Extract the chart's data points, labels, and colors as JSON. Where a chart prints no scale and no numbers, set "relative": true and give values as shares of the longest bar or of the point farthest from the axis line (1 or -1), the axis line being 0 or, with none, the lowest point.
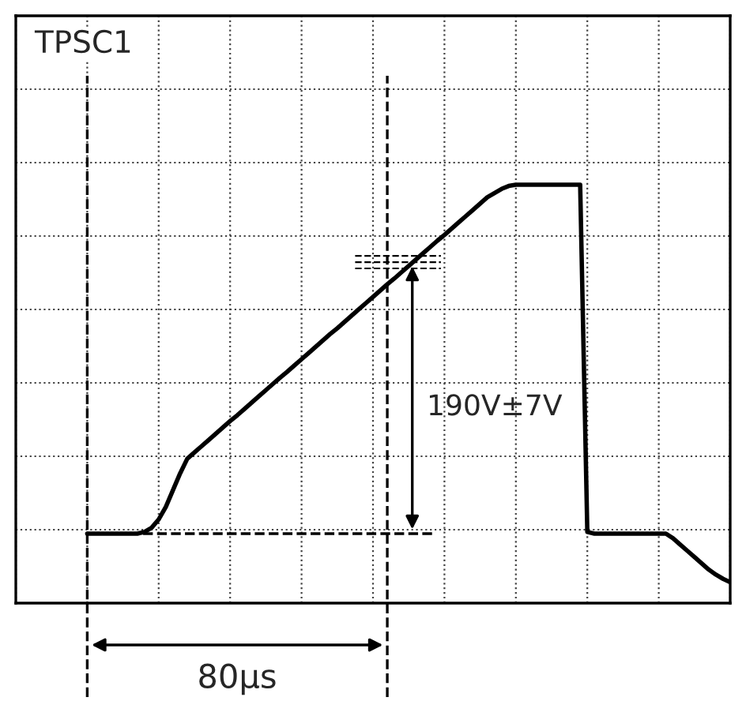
{
  "chart_data": {
    "type": "line",
    "relative": true,
    "categories": [
      null,
      null,
      null,
      null,
      null,
      null,
      null,
      null,
      null,
      null,
      null,
      null,
      null,
      null,
      null,
      null,
      null,
      null,
      null,
      null,
      null,
      null,
      null,
      null,
      null,
      null,
      null,
      null,
      null,
      null,
      null,
      null,
      null,
      null,
      null,
      null,
      null,
      null,
      null,
      null,
      null,
      null,
      null,
      null,
      null,
      null,
      null,
      null,
      null,
      null,
      null,
      null,
      null,
      null,
      null,
      null,
      null,
      null,
      null,
      null,
      null,
      null,
      null,
      null,
      null,
      null,
      null,
      null,
      null,
      null,
      null,
      null,
      null,
      null,
      null,
      null,
      null,
      null,
      null,
      null,
      null,
      null,
      null,
      null,
      null,
      null,
      null,
      null,
      null,
      null,
      null,
      null,
      null,
      null,
      null,
      null,
      null,
      null,
      null,
      null,
      null
    ],
    "series": [
      {
        "color": "#000000",
        "values": [
          null,
          null,
          null,
          null,
          null,
          null,
          null,
          null,
          null,
          null,
          0.166,
          0.166,
          0.166,
          0.166,
          0.166,
          0.166,
          0.166,
          0.166,
          0.17,
          0.18,
          0.2,
          0.23,
          0.27,
          0.31,
          0.345,
          0.36,
          0.375,
          0.39,
          0.405,
          0.42,
          0.435,
          0.449,
          0.464,
          0.479,
          0.494,
          0.509,
          0.524,
          0.539,
          0.553,
          0.568,
          0.583,
          0.598,
          0.613,
          0.628,
          0.643,
          0.657,
          0.672,
          0.687,
          0.702,
          0.717,
          0.732,
          0.747,
          0.762,
          0.776,
          0.791,
          0.806,
          0.821,
          0.836,
          0.851,
          0.866,
          0.88,
          0.895,
          0.91,
          0.925,
          0.94,
          0.955,
          0.97,
          0.98,
          0.99,
          0.997,
          1.0,
          1.0,
          1.0,
          1.0,
          1.0,
          1.0,
          1.0,
          1.0,
          1.0,
          1.0,
          0.17,
          0.166,
          0.166,
          0.166,
          0.166,
          0.166,
          0.166,
          0.166,
          0.166,
          0.166,
          0.166,
          0.166,
          0.155,
          0.14,
          0.125,
          0.11,
          0.095,
          0.08,
          0.068,
          0.058,
          0.05
        ]
      }
    ],
    "annotations": [
      "TPSC1",
      "190V±7V",
      "80μs"
    ],
    "ref_lines": [
      {
        "axis": "y",
        "value": 0.166,
        "line_style": "dashed"
      }
    ],
    "grid": true,
    "tick_labels": false,
    "marker": "none",
    "line_style": "solid"
  }
}
